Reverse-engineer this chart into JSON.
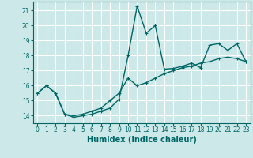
{
  "title": "",
  "xlabel": "Humidex (Indice chaleur)",
  "bg_color": "#cce8e8",
  "grid_color": "#ffffff",
  "line_color": "#006666",
  "xlim": [
    -0.5,
    23.5
  ],
  "ylim": [
    13.5,
    21.6
  ],
  "yticks": [
    14,
    15,
    16,
    17,
    18,
    19,
    20,
    21
  ],
  "xticks": [
    0,
    1,
    2,
    3,
    4,
    5,
    6,
    7,
    8,
    9,
    10,
    11,
    12,
    13,
    14,
    15,
    16,
    17,
    18,
    19,
    20,
    21,
    22,
    23
  ],
  "line1_x": [
    0,
    1,
    2,
    3,
    4,
    5,
    6,
    7,
    8,
    9,
    10,
    11,
    12,
    13,
    14,
    15,
    16,
    17,
    18,
    19,
    20,
    21,
    22,
    23
  ],
  "line1_y": [
    15.5,
    16.0,
    15.5,
    14.1,
    13.9,
    14.0,
    14.1,
    14.3,
    14.5,
    15.1,
    18.0,
    21.3,
    19.5,
    20.0,
    17.1,
    17.15,
    17.3,
    17.5,
    17.2,
    18.7,
    18.8,
    18.35,
    18.8,
    17.6
  ],
  "line2_x": [
    0,
    1,
    2,
    3,
    4,
    5,
    6,
    7,
    8,
    9,
    10,
    11,
    12,
    13,
    14,
    15,
    16,
    17,
    18,
    19,
    20,
    21,
    22,
    23
  ],
  "line2_y": [
    15.5,
    16.0,
    15.5,
    14.1,
    14.0,
    14.1,
    14.3,
    14.5,
    15.0,
    15.5,
    16.5,
    16.0,
    16.2,
    16.5,
    16.8,
    17.0,
    17.2,
    17.3,
    17.5,
    17.6,
    17.8,
    17.9,
    17.8,
    17.6
  ],
  "xlabel_fontsize": 7,
  "tick_fontsize": 5.5,
  "linewidth": 1.0,
  "markersize": 3.5
}
